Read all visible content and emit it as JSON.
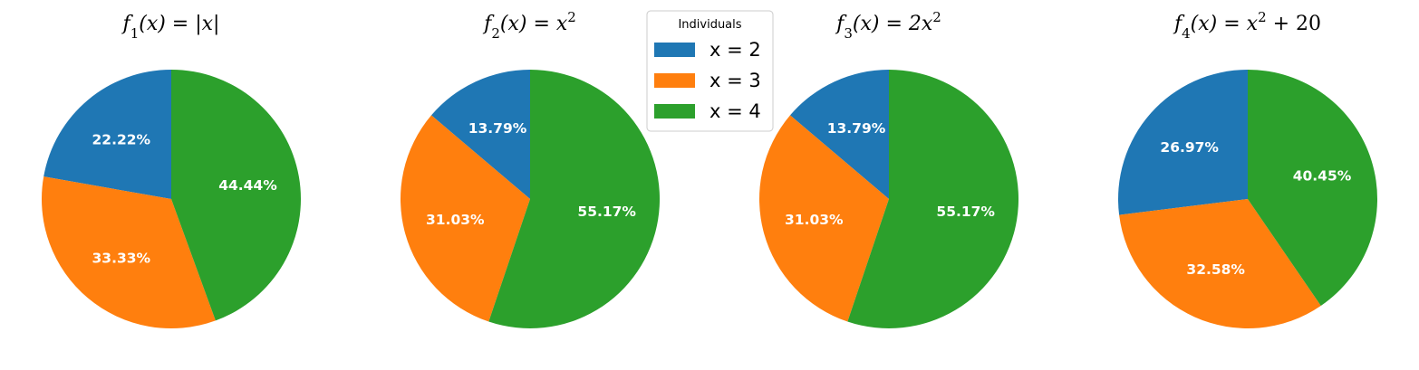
{
  "chart_data": [
    {
      "type": "pie",
      "title": {
        "f": "f",
        "sub": "1",
        "rest": "(x) = |x|",
        "sup": "",
        "tail": ""
      },
      "categories": [
        "x = 2",
        "x = 3",
        "x = 4"
      ],
      "values": [
        2,
        3,
        4
      ],
      "labels": [
        "22.22%",
        "33.33%",
        "44.44%"
      ],
      "start_angle_deg": 90,
      "counterclockwise": true
    },
    {
      "type": "pie",
      "title": {
        "f": "f",
        "sub": "2",
        "rest": "(x) = x",
        "sup": "2",
        "tail": ""
      },
      "categories": [
        "x = 2",
        "x = 3",
        "x = 4"
      ],
      "values": [
        4,
        9,
        16
      ],
      "labels": [
        "13.79%",
        "31.03%",
        "55.17%"
      ],
      "start_angle_deg": 90,
      "counterclockwise": true
    },
    {
      "type": "pie",
      "title": {
        "f": "f",
        "sub": "3",
        "rest": "(x) = 2x",
        "sup": "2",
        "tail": ""
      },
      "categories": [
        "x = 2",
        "x = 3",
        "x = 4"
      ],
      "values": [
        8,
        18,
        32
      ],
      "labels": [
        "13.79%",
        "31.03%",
        "55.17%"
      ],
      "start_angle_deg": 90,
      "counterclockwise": true
    },
    {
      "type": "pie",
      "title": {
        "f": "f",
        "sub": "4",
        "rest": "(x) = x",
        "sup": "2",
        "tail": " + 20"
      },
      "categories": [
        "x = 2",
        "x = 3",
        "x = 4"
      ],
      "values": [
        24,
        29,
        36
      ],
      "labels": [
        "26.97%",
        "32.58%",
        "40.45%"
      ],
      "start_angle_deg": 90,
      "counterclockwise": true
    }
  ],
  "legend": {
    "title": "Individuals",
    "placement": "top-center",
    "entries": [
      "x = 2",
      "x = 3",
      "x = 4"
    ]
  },
  "colors": [
    "#1f77b4",
    "#ff7f0e",
    "#2ca02c"
  ]
}
